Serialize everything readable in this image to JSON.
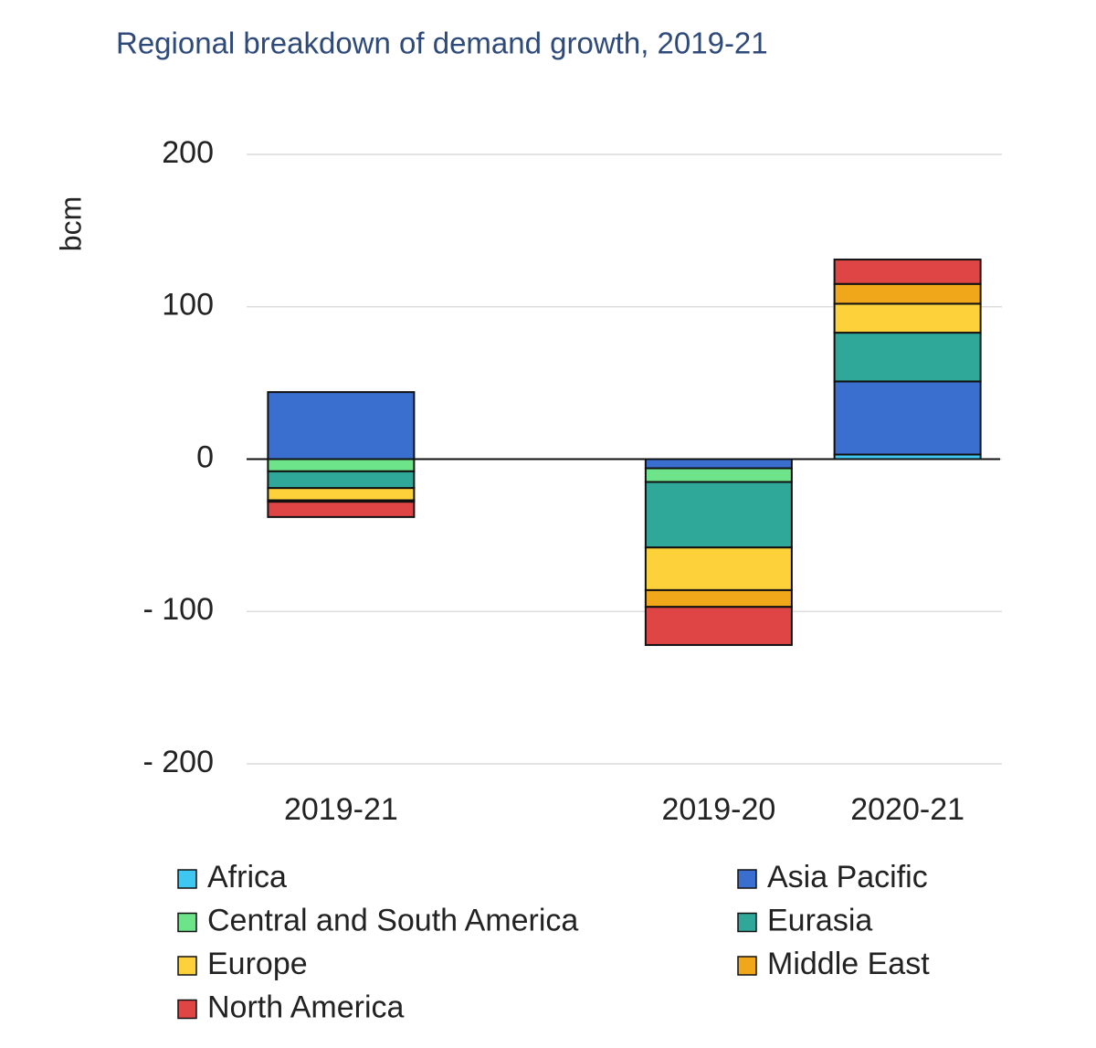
{
  "chart_data": {
    "type": "bar",
    "stacked": true,
    "title": "Regional breakdown of demand growth, 2019-21",
    "y_label": "bcm",
    "categories": [
      "2019-21",
      null,
      "2019-20",
      "2020-21"
    ],
    "series": [
      {
        "name": "Africa",
        "color": "#3ec7f0",
        "values": [
          0,
          null,
          0,
          3
        ]
      },
      {
        "name": "Asia Pacific",
        "color": "#3a6fd0",
        "values": [
          44,
          null,
          -6,
          48
        ]
      },
      {
        "name": "Central and South America",
        "color": "#6de38a",
        "values": [
          -8,
          null,
          -9,
          0
        ]
      },
      {
        "name": "Eurasia",
        "color": "#2fa89a",
        "values": [
          -11,
          null,
          -43,
          32
        ]
      },
      {
        "name": "Europe",
        "color": "#fcd13a",
        "values": [
          -8,
          null,
          -28,
          19
        ]
      },
      {
        "name": "Middle East",
        "color": "#f0a81a",
        "values": [
          -1,
          null,
          -11,
          13
        ]
      },
      {
        "name": "North America",
        "color": "#e04545",
        "values": [
          -10,
          null,
          -25,
          16
        ]
      }
    ],
    "ylim": [
      -200,
      200
    ],
    "yticks": [
      {
        "value": -200,
        "label": "- 200"
      },
      {
        "value": -100,
        "label": "- 100"
      },
      0,
      100,
      200
    ],
    "grid": true
  }
}
